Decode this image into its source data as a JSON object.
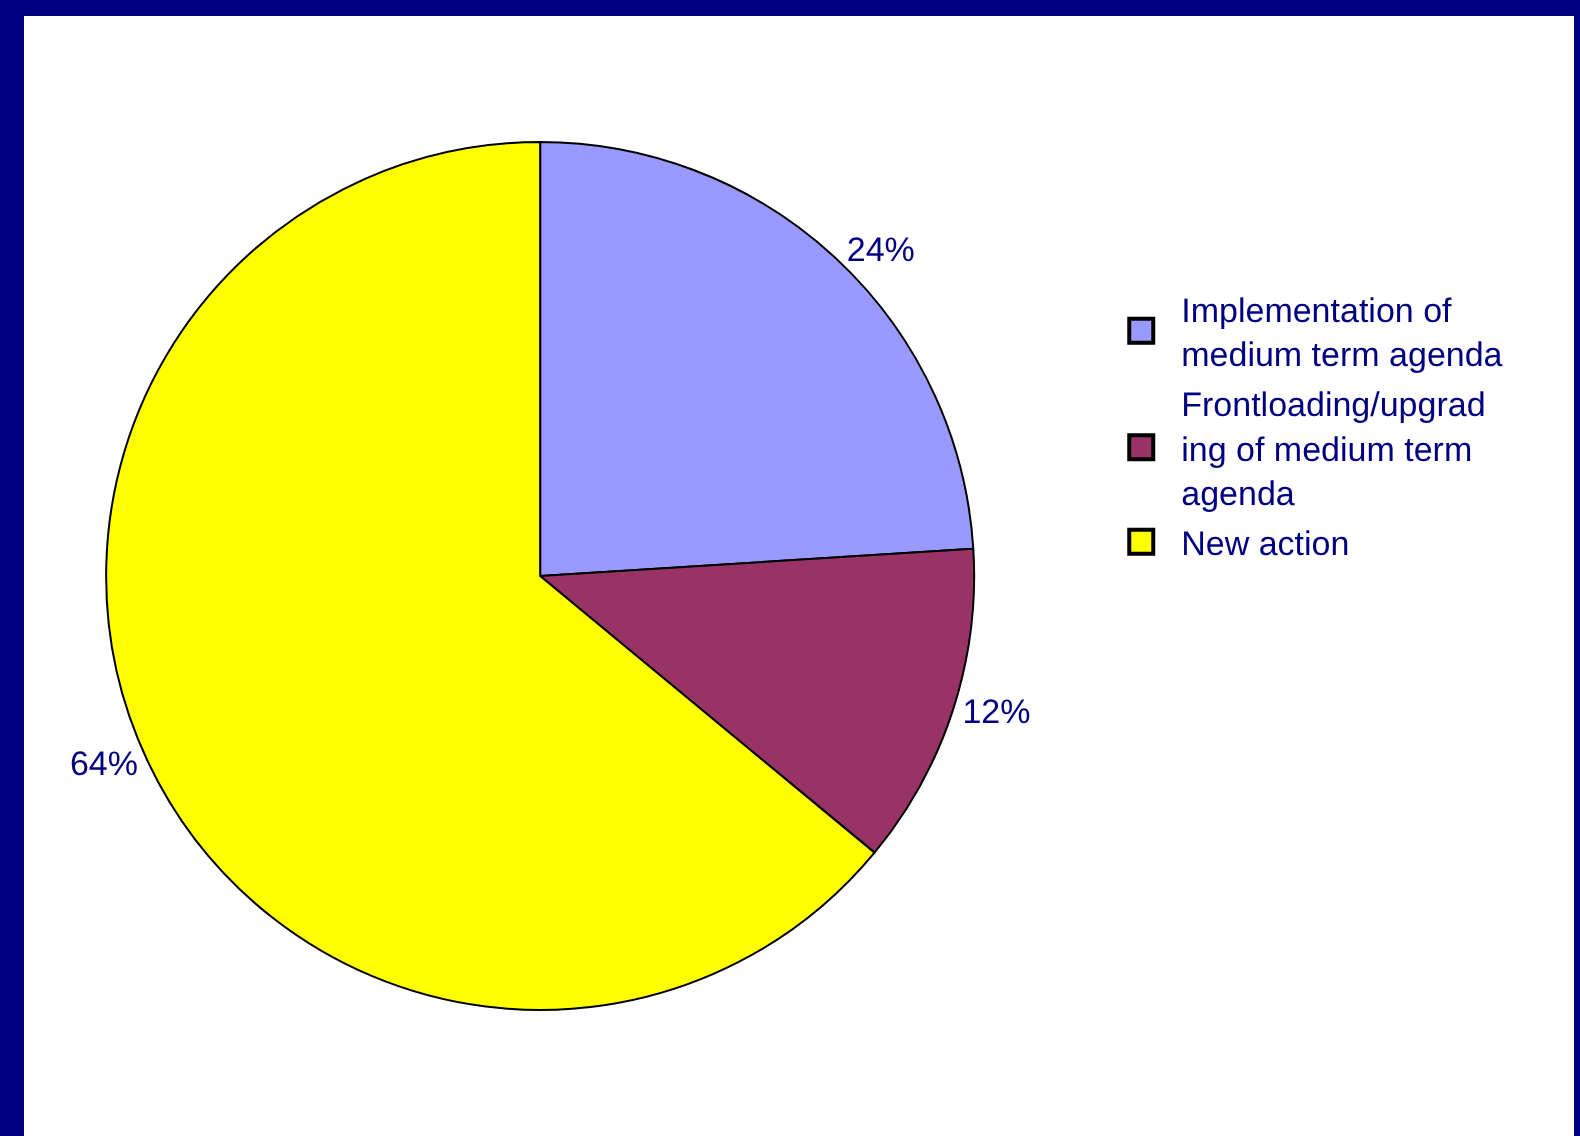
{
  "chart_data": {
    "type": "pie",
    "categories": [
      "Implementation of medium term agenda",
      "Frontloading/upgrading of medium term agenda",
      "New action"
    ],
    "values": [
      24,
      12,
      64
    ],
    "colors": [
      "#9999ff",
      "#993366",
      "#ffff00"
    ],
    "value_labels": [
      "24%",
      "12%",
      "64%"
    ],
    "legend": "right"
  }
}
